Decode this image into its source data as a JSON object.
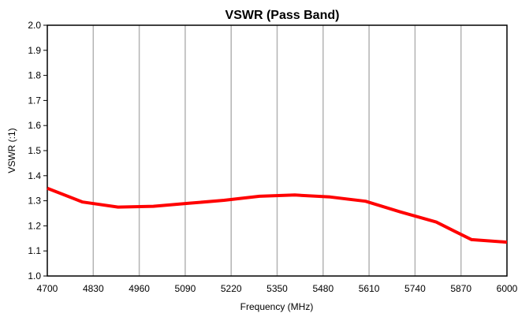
{
  "chart_data": {
    "type": "line",
    "title": "VSWR (Pass Band)",
    "xlabel": "Frequency (MHz)",
    "ylabel": "VSWR (:1)",
    "xlim": [
      4700,
      6000
    ],
    "ylim": [
      1.0,
      2.0
    ],
    "x_ticks": [
      "4700",
      "4830",
      "4960",
      "5090",
      "5220",
      "5350",
      "5480",
      "5610",
      "5740",
      "5870",
      "6000"
    ],
    "y_ticks": [
      "1.0",
      "1.1",
      "1.2",
      "1.3",
      "1.4",
      "1.5",
      "1.6",
      "1.7",
      "1.8",
      "1.9",
      "2.0"
    ],
    "grid": "vertical",
    "series": [
      {
        "color": "#ff0000",
        "x": [
          4700,
          4800,
          4900,
          5000,
          5100,
          5200,
          5300,
          5400,
          5500,
          5600,
          5700,
          5800,
          5850,
          5900,
          6000
        ],
        "y": [
          1.35,
          1.295,
          1.275,
          1.278,
          1.29,
          1.302,
          1.318,
          1.323,
          1.315,
          1.298,
          1.255,
          1.215,
          1.18,
          1.145,
          1.135
        ]
      }
    ]
  }
}
